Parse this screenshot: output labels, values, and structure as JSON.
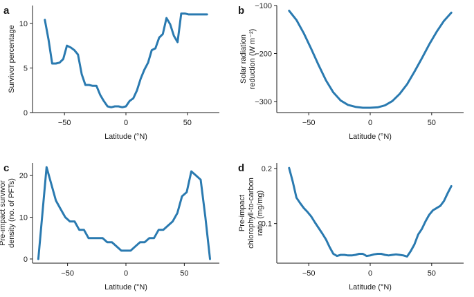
{
  "colors": {
    "series": "#2a7ab0",
    "axis": "#1a1a1a"
  },
  "chart_data": [
    {
      "panel": "a",
      "type": "line",
      "xlabel": "Latitude (°N)",
      "ylabel": [
        "Survivor percentage"
      ],
      "xlim": [
        -76,
        76
      ],
      "ylim": [
        0,
        12
      ],
      "xticks": [
        -50,
        0,
        50
      ],
      "yticks": [
        0,
        5,
        10
      ],
      "x": [
        -66,
        -63,
        -60,
        -57,
        -54,
        -51,
        -48,
        -45,
        -42,
        -39,
        -36,
        -33,
        -30,
        -27,
        -24,
        -21,
        -18,
        -15,
        -12,
        -9,
        -6,
        -3,
        0,
        3,
        6,
        9,
        12,
        15,
        18,
        21,
        24,
        27,
        30,
        33,
        36,
        39,
        42,
        45,
        48,
        51,
        54,
        57,
        60,
        63,
        66
      ],
      "values": [
        10.4,
        8.2,
        5.5,
        5.5,
        5.6,
        6.0,
        7.5,
        7.3,
        7.0,
        6.5,
        4.3,
        3.1,
        3.1,
        3.0,
        3.0,
        2.0,
        1.3,
        0.7,
        0.6,
        0.7,
        0.7,
        0.6,
        0.7,
        1.3,
        1.6,
        2.5,
        3.8,
        4.8,
        5.6,
        7.0,
        7.2,
        8.4,
        8.8,
        10.6,
        9.9,
        8.6,
        7.9,
        11.1,
        11.1,
        11.0,
        11.0,
        11.0,
        11.0,
        11.0,
        11.0
      ]
    },
    {
      "panel": "b",
      "type": "line",
      "xlabel": "Latitude (°N)",
      "ylabel": [
        "Solar radiation",
        "reduction (W m⁻²)"
      ],
      "xlim": [
        -76,
        76
      ],
      "ylim": [
        -323,
        -100
      ],
      "xticks": [
        -50,
        0,
        50
      ],
      "yticks": [
        -300,
        -200,
        -100
      ],
      "x": [
        -66,
        -60,
        -54,
        -48,
        -42,
        -36,
        -30,
        -24,
        -18,
        -12,
        -6,
        0,
        6,
        12,
        18,
        24,
        30,
        36,
        42,
        48,
        54,
        60,
        66
      ],
      "values": [
        -111,
        -130,
        -158,
        -190,
        -224,
        -256,
        -281,
        -298,
        -307,
        -311,
        -313,
        -313,
        -312,
        -308,
        -299,
        -284,
        -264,
        -238,
        -210,
        -181,
        -155,
        -132,
        -115
      ]
    },
    {
      "panel": "c",
      "type": "line",
      "xlabel": "Latitude (°N)",
      "ylabel": [
        "Pre-impact survivor",
        "density (no. of PFTs)"
      ],
      "xlim": [
        -80,
        80
      ],
      "ylim": [
        -1,
        23
      ],
      "xticks": [
        -50,
        0,
        50
      ],
      "yticks": [
        0,
        10,
        20
      ],
      "x": [
        -75,
        -68,
        -60,
        -56,
        -52,
        -48,
        -44,
        -40,
        -36,
        -32,
        -28,
        -24,
        -20,
        -16,
        -12,
        -8,
        -4,
        0,
        4,
        8,
        12,
        16,
        20,
        24,
        28,
        32,
        36,
        40,
        44,
        48,
        52,
        56,
        60,
        64,
        68,
        72
      ],
      "values": [
        0,
        22,
        14,
        12,
        10,
        9,
        9,
        7,
        7,
        5,
        5,
        5,
        5,
        4,
        4,
        3,
        2,
        2,
        2,
        3,
        4,
        4,
        5,
        5,
        7,
        7,
        8,
        9,
        11,
        15,
        16,
        21,
        20,
        19,
        10,
        0
      ]
    },
    {
      "panel": "d",
      "type": "line",
      "xlabel": "Latitude (°N)",
      "ylabel": [
        "Pre-impact",
        "chlorophyll-to-carbon",
        "ratio (mg/mg)"
      ],
      "xlim": [
        -76,
        76
      ],
      "ylim": [
        0.028,
        0.21
      ],
      "xticks": [
        -50,
        0,
        50
      ],
      "yticks": [
        0.1,
        0.2
      ],
      "x": [
        -66,
        -63,
        -60,
        -57,
        -54,
        -51,
        -48,
        -45,
        -42,
        -39,
        -36,
        -33,
        -30,
        -27,
        -24,
        -21,
        -18,
        -15,
        -12,
        -9,
        -6,
        -3,
        0,
        3,
        6,
        9,
        12,
        15,
        18,
        21,
        24,
        27,
        30,
        33,
        36,
        39,
        42,
        45,
        48,
        51,
        54,
        57,
        60,
        63,
        66
      ],
      "values": [
        0.201,
        0.176,
        0.147,
        0.137,
        0.128,
        0.121,
        0.113,
        0.102,
        0.092,
        0.082,
        0.071,
        0.057,
        0.045,
        0.041,
        0.043,
        0.043,
        0.042,
        0.042,
        0.043,
        0.045,
        0.045,
        0.041,
        0.042,
        0.044,
        0.045,
        0.045,
        0.043,
        0.042,
        0.043,
        0.044,
        0.043,
        0.042,
        0.04,
        0.05,
        0.062,
        0.08,
        0.09,
        0.104,
        0.116,
        0.124,
        0.128,
        0.132,
        0.141,
        0.155,
        0.168
      ]
    }
  ]
}
